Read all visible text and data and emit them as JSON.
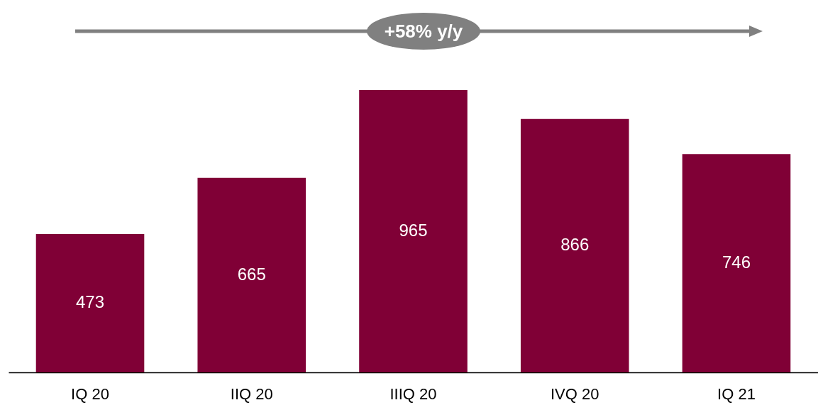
{
  "chart_data": {
    "type": "bar",
    "categories": [
      "IQ 20",
      "IIQ 20",
      "IIIQ 20",
      "IVQ 20",
      "IQ 21"
    ],
    "values": [
      473,
      665,
      965,
      866,
      746
    ],
    "color": "#800036",
    "data_labels": true,
    "annotations": [
      "+58% y/y"
    ]
  }
}
